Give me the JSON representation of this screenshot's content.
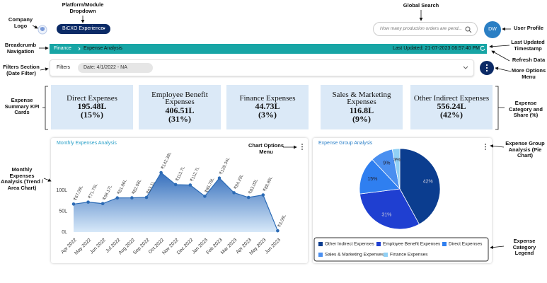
{
  "annotations": [
    "Company Logo",
    "Platform/Module Dropdown",
    "Global Search",
    "User Profile",
    "Breadcrumb Navigation",
    "Last Updated Timestamp",
    "Refresh Data",
    "Filters Section (Date Filter)",
    "More Options Menu",
    "Expense Summary KPI Cards",
    "Expense Category and Share (%)",
    "Chart Options Menu",
    "Expense Group Analysis (Pie Chart)",
    "Monthly Expenses Analysis (Trend / Area Chart)",
    "Expense Category Legend"
  ],
  "header": {
    "module_dropdown": "BiCXO Experience",
    "search_placeholder": "How many production orders are pend...",
    "avatar": "DW"
  },
  "breadcrumb": {
    "items": [
      "Finance",
      "Expense Analysis"
    ],
    "last_updated": "Last Updated: 21-07-2023 06:57:40 PM"
  },
  "filters": {
    "label": "Filters",
    "chip": "Date: 4/1/2022 - NA"
  },
  "kpi_cards": [
    {
      "title": "Direct Expenses",
      "value": "195.48L",
      "share": "(15%)"
    },
    {
      "title": "Employee Benefit Expenses",
      "value": "406.51L",
      "share": "(31%)"
    },
    {
      "title": "Finance Expenses",
      "value": "44.73L",
      "share": "(3%)"
    },
    {
      "title": "Sales & Marketing Expenses",
      "value": "116.8L",
      "share": "(9%)"
    },
    {
      "title": "Other Indirect Expenses",
      "value": "556.24L",
      "share": "(42%)"
    }
  ],
  "area_chart": {
    "type": "area",
    "title": "Monthly Expenses Analysis",
    "categories": [
      "Apr 2022",
      "May 2022",
      "Jun 2022",
      "Jul 2022",
      "Aug 2022",
      "Sep 2022",
      "Oct 2022",
      "Nov 2022",
      "Dec 2022",
      "Jan 2023",
      "Feb 2023",
      "Mar 2023",
      "Apr 2023",
      "May 2023",
      "Jun 2023"
    ],
    "values": [
      67.08,
      71.75,
      68.17,
      81.86,
      82.08,
      83.1,
      142.38,
      113.7,
      112.7,
      85.78,
      129.34,
      94.29,
      83.03,
      88.89,
      3.08
    ],
    "value_labels": [
      "₹67.08L",
      "₹71.75L",
      "₹68.17L",
      "₹81.86L",
      "₹82.08L",
      "₹83.1L",
      "₹142.38L",
      "₹113.7L",
      "₹112.7L",
      "₹85.78L",
      "₹129.34L",
      "₹94.29L",
      "₹83.03L",
      "₹88.89L",
      "₹3.08L"
    ],
    "color": "#2c6bb5",
    "ylim": [
      0,
      180
    ],
    "yticks": [
      {
        "value": 0,
        "label": "0L"
      },
      {
        "value": 50,
        "label": "50L"
      },
      {
        "value": 100,
        "label": "100L"
      }
    ],
    "grid": false
  },
  "pie_chart": {
    "type": "pie",
    "title": "Expense Group Analysis",
    "categories": [
      "Other Indirect Expenses",
      "Employee Benefit Expenses",
      "Direct Expenses",
      "Sales & Marketing Expenses",
      "Finance Expenses"
    ],
    "values": [
      42,
      31,
      15,
      9,
      3
    ],
    "value_labels": [
      "42%",
      "31%",
      "15%",
      "9%",
      "3%"
    ],
    "colors": [
      "#0b3d8f",
      "#1f3fd1",
      "#2f7ff0",
      "#4a8ff0",
      "#90d0f5"
    ]
  }
}
